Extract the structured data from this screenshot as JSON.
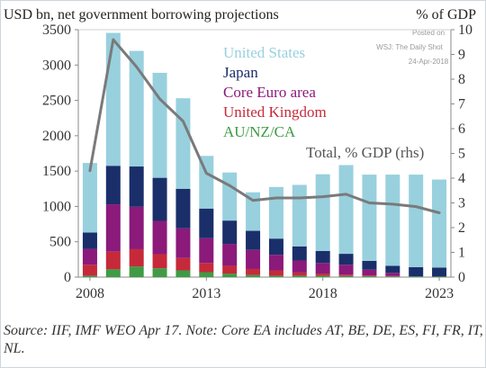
{
  "header": {
    "left": "USD bn, net government borrowing projections",
    "right": "% of GDP"
  },
  "watermark": {
    "line1": "Posted on",
    "line2": "WSJ: The Daily Shot",
    "line3": "24-Apr-2018"
  },
  "source": "Source: IIF, IMF WEO Apr 17. Note: Core EA includes AT, BE, DE, ES, FI, FR, IT, NL.",
  "chart_data": {
    "type": "bar",
    "stacked": true,
    "categories": [
      "2008",
      "2009",
      "2010",
      "2011",
      "2012",
      "2013",
      "2014",
      "2015",
      "2016",
      "2017",
      "2018",
      "2019",
      "2020",
      "2021",
      "2022",
      "2023"
    ],
    "x_ticks": [
      "2008",
      "2013",
      "2018",
      "2023"
    ],
    "ylim": [
      0,
      3500
    ],
    "y_ticks": [
      "0",
      "500",
      "1000",
      "1500",
      "2000",
      "2500",
      "3000",
      "3500"
    ],
    "y2lim": [
      0,
      10
    ],
    "y2_ticks": [
      "0",
      "1",
      "2",
      "3",
      "4",
      "5",
      "6",
      "7",
      "8",
      "9",
      "10"
    ],
    "grid": false,
    "legend_position": "top-right",
    "series": [
      {
        "name": "AU/NZ/CA",
        "color": "#3f9b44",
        "values": [
          20,
          110,
          150,
          125,
          95,
          70,
          50,
          30,
          20,
          20,
          20,
          15,
          15,
          10,
          10,
          8
        ]
      },
      {
        "name": "United Kingdom",
        "color": "#c62a3a",
        "values": [
          155,
          250,
          245,
          200,
          175,
          130,
          110,
          85,
          75,
          45,
          30,
          20,
          10,
          5,
          0,
          0
        ]
      },
      {
        "name": "Core Euro area",
        "color": "#8b1a7b",
        "values": [
          225,
          670,
          600,
          470,
          420,
          350,
          310,
          270,
          220,
          170,
          150,
          140,
          80,
          45,
          0,
          0
        ]
      },
      {
        "name": "Japan",
        "color": "#1a2f6a",
        "values": [
          230,
          545,
          570,
          610,
          560,
          420,
          330,
          270,
          230,
          200,
          170,
          155,
          125,
          100,
          130,
          128
        ]
      },
      {
        "name": "United States",
        "color": "#98d0de",
        "values": [
          985,
          1880,
          1635,
          1485,
          1280,
          745,
          680,
          545,
          730,
          870,
          1085,
          1255,
          1220,
          1290,
          1310,
          1244
        ]
      }
    ],
    "line_series": {
      "name": "Total, % GDP (rhs)",
      "axis": "right",
      "color": "#7a7a7a",
      "values": [
        4.3,
        9.6,
        8.5,
        7.2,
        6.3,
        4.2,
        3.7,
        3.1,
        3.2,
        3.2,
        3.25,
        3.35,
        3.0,
        2.95,
        2.85,
        2.6
      ]
    }
  }
}
